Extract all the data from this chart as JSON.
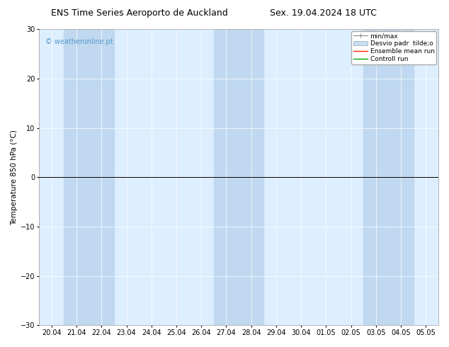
{
  "title_left": "ENS Time Series Aeroporto de Auckland",
  "title_right": "Sex. 19.04.2024 18 UTC",
  "ylabel": "Temperature 850 hPa (°C)",
  "ylim": [
    -30,
    30
  ],
  "yticks": [
    -30,
    -20,
    -10,
    0,
    10,
    20,
    30
  ],
  "xlabels": [
    "20.04",
    "21.04",
    "22.04",
    "23.04",
    "24.04",
    "25.04",
    "26.04",
    "27.04",
    "28.04",
    "29.04",
    "30.04",
    "01.05",
    "02.05",
    "03.05",
    "04.05",
    "05.05"
  ],
  "shaded_indices": [
    1,
    2,
    7,
    8,
    13,
    14
  ],
  "zero_line_y": 0,
  "watermark": "© weatheronline.pt",
  "watermark_color": "#5599cc",
  "legend_entries": [
    "min/max",
    "Desvio padr  tilde;o",
    "Ensemble mean run",
    "Controll run"
  ],
  "legend_colors_line": [
    "#888888",
    "#aabbcc",
    "#ff2200",
    "#00aa00"
  ],
  "bg_color": "#ffffff",
  "plot_bg_color": "#ddeeff",
  "band_color": "#c0d8f0",
  "title_fontsize": 9,
  "tick_fontsize": 7,
  "ylabel_fontsize": 7.5
}
